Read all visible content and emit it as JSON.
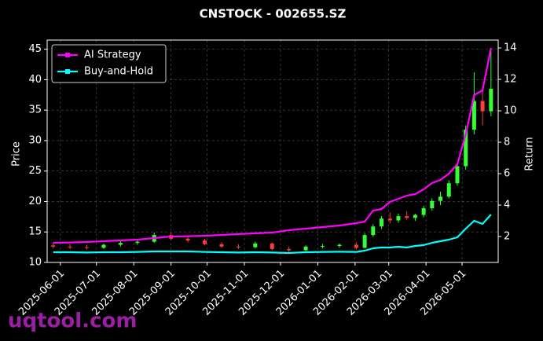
{
  "chart_data": {
    "type": "candlestick",
    "title": "CNSTOCK - 002655.SZ",
    "x": [
      "2025-05-26",
      "2025-06-09",
      "2025-06-23",
      "2025-07-07",
      "2025-07-21",
      "2025-08-04",
      "2025-08-18",
      "2025-09-01",
      "2025-09-15",
      "2025-09-29",
      "2025-10-13",
      "2025-10-27",
      "2025-11-10",
      "2025-11-24",
      "2025-12-08",
      "2025-12-22",
      "2026-01-05",
      "2026-01-19",
      "2026-02-02",
      "2026-02-09",
      "2026-02-16",
      "2026-02-23",
      "2026-03-02",
      "2026-03-09",
      "2026-03-16",
      "2026-03-23",
      "2026-03-30",
      "2026-04-06",
      "2026-04-13",
      "2026-04-20",
      "2026-04-27",
      "2026-05-04",
      "2026-05-11",
      "2026-05-18",
      "2026-05-25"
    ],
    "open": [
      12.8,
      12.6,
      12.5,
      12.4,
      12.9,
      13.2,
      13.4,
      14.5,
      13.9,
      13.6,
      13.0,
      12.6,
      12.5,
      13.1,
      12.2,
      12.0,
      12.6,
      12.7,
      12.9,
      12.4,
      14.5,
      15.9,
      17.2,
      16.9,
      17.6,
      17.3,
      17.8,
      18.9,
      20.1,
      20.8,
      23.0,
      25.8,
      31.8,
      36.5,
      34.8
    ],
    "high": [
      13.2,
      13.0,
      12.9,
      13.1,
      13.6,
      13.8,
      14.9,
      14.9,
      14.4,
      13.9,
      13.3,
      13.0,
      13.4,
      13.3,
      12.6,
      12.8,
      13.0,
      13.1,
      13.3,
      14.8,
      16.3,
      17.6,
      18.2,
      18.0,
      18.4,
      18.0,
      19.3,
      20.5,
      21.6,
      23.5,
      26.4,
      32.5,
      41.2,
      39.0,
      45.0
    ],
    "low": [
      12.3,
      12.2,
      12.1,
      12.2,
      12.6,
      12.9,
      13.2,
      13.6,
      13.3,
      12.8,
      12.4,
      12.2,
      12.3,
      12.0,
      11.7,
      11.9,
      12.3,
      12.4,
      12.1,
      12.3,
      14.2,
      15.5,
      16.4,
      16.5,
      17.0,
      16.8,
      17.4,
      18.5,
      19.4,
      20.5,
      22.6,
      25.2,
      31.0,
      32.5,
      34.0
    ],
    "close": [
      12.6,
      12.5,
      12.4,
      12.9,
      13.2,
      13.4,
      14.5,
      13.9,
      13.6,
      13.0,
      12.6,
      12.5,
      13.1,
      12.2,
      12.0,
      12.6,
      12.7,
      12.9,
      12.4,
      14.5,
      15.9,
      17.2,
      16.9,
      17.6,
      17.3,
      17.8,
      18.9,
      20.1,
      20.8,
      23.0,
      25.8,
      31.8,
      36.5,
      34.8,
      38.5
    ],
    "up_color": "#33ff33",
    "down_color": "#ff3b3b",
    "series": [
      {
        "name": "AI Strategy",
        "color": "#ff00ff",
        "axis": "y2",
        "values": [
          1.6,
          1.62,
          1.65,
          1.7,
          1.75,
          1.8,
          1.9,
          2.0,
          2.02,
          2.05,
          2.1,
          2.15,
          2.2,
          2.25,
          2.4,
          2.5,
          2.6,
          2.7,
          2.85,
          2.95,
          3.65,
          3.75,
          4.2,
          4.4,
          4.6,
          4.7,
          5.0,
          5.4,
          5.6,
          6.0,
          6.6,
          8.5,
          11.0,
          11.3,
          14.0
        ]
      },
      {
        "name": "Buy-and-Hold",
        "color": "#00ffff",
        "axis": "y2",
        "values": [
          1.0,
          1.0,
          0.98,
          1.0,
          1.0,
          1.02,
          1.05,
          1.05,
          1.05,
          1.02,
          1.0,
          0.98,
          1.0,
          0.98,
          0.95,
          1.0,
          1.02,
          1.03,
          1.02,
          1.1,
          1.25,
          1.3,
          1.3,
          1.35,
          1.3,
          1.4,
          1.45,
          1.6,
          1.7,
          1.8,
          1.95,
          2.5,
          3.0,
          2.8,
          3.4
        ]
      }
    ],
    "xlim": [
      "2025-05-21",
      "2026-05-31"
    ],
    "xticks": [
      "2025-06-01",
      "2025-07-01",
      "2025-08-01",
      "2025-09-01",
      "2025-10-01",
      "2025-11-01",
      "2025-12-01",
      "2026-01-01",
      "2026-02-01",
      "2026-03-01",
      "2026-04-01",
      "2026-05-01"
    ],
    "ylim": [
      10,
      46.5
    ],
    "yticks": [
      10,
      15,
      20,
      25,
      30,
      35,
      40,
      45
    ],
    "y2lim": [
      0.35,
      14.5
    ],
    "y2ticks": [
      2,
      4,
      6,
      8,
      10,
      12,
      14
    ],
    "ylabel": "Price",
    "y2label": "Return",
    "grid": true,
    "legend": "upper left",
    "watermark": "uqtool.com"
  }
}
